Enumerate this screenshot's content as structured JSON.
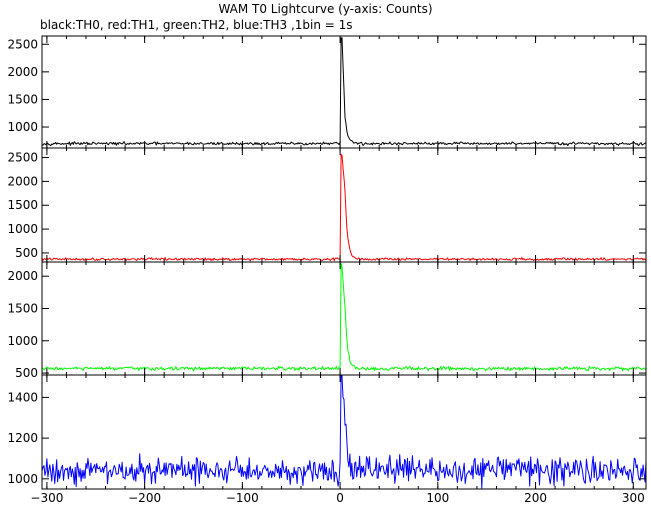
{
  "title": "WAM T0 Lightcurve (y-axis: Counts)",
  "subtitle": "black:TH0, red:TH1, green:TH2, blue:TH3 ,1bin = 1s",
  "chart_data": {
    "type": "line",
    "x_ticks": [
      -300,
      -200,
      -100,
      0,
      100,
      200,
      300
    ],
    "xlim": [
      -305,
      313
    ],
    "panels": [
      {
        "name": "TH0",
        "color": "#000000",
        "ylim": [
          620,
          2650
        ],
        "y_ticks": [
          1000,
          1500,
          2000,
          2500
        ],
        "baseline": 700,
        "noise": 16,
        "peak": 2600,
        "peak_time": 1,
        "shoulder": 1200,
        "decay_end": 15
      },
      {
        "name": "TH1",
        "color": "#ff0000",
        "ylim": [
          310,
          2700
        ],
        "y_ticks": [
          500,
          1000,
          1500,
          2000,
          2500
        ],
        "baseline": 370,
        "noise": 16,
        "peak": 2550,
        "peak_time": 1,
        "shoulder": 1800,
        "decay_end": 15
      },
      {
        "name": "TH2",
        "color": "#00ff00",
        "ylim": [
          470,
          2220
        ],
        "y_ticks": [
          500,
          1000,
          1500,
          2000
        ],
        "baseline": 570,
        "noise": 18,
        "peak": 2180,
        "peak_time": 1,
        "shoulder": 1500,
        "decay_end": 15
      },
      {
        "name": "TH3",
        "color": "#0000ff",
        "ylim": [
          950,
          1510
        ],
        "y_ticks": [
          1000,
          1200,
          1400
        ],
        "baseline": 1040,
        "noise": 40,
        "peak": 1500,
        "peak_time": 1,
        "shoulder": 1300,
        "decay_end": 12
      }
    ]
  }
}
